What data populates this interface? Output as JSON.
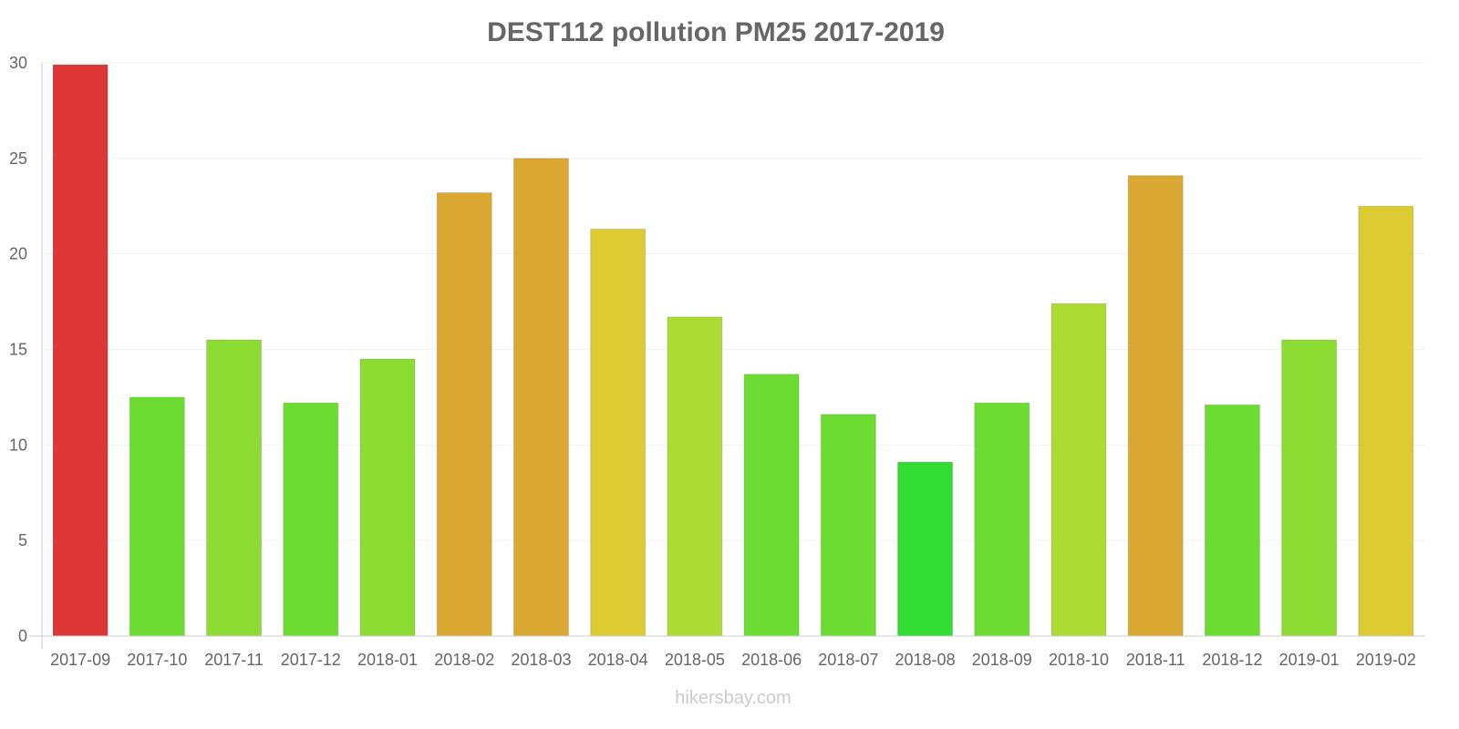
{
  "chart_data": {
    "type": "bar",
    "title": "DEST112 pollution PM25 2017-2019",
    "xlabel": "",
    "ylabel": "",
    "ylim": [
      0,
      30
    ],
    "yticks": [
      0,
      5,
      10,
      15,
      20,
      25,
      30
    ],
    "grid": true,
    "categories": [
      "2017-09",
      "2017-10",
      "2017-11",
      "2017-12",
      "2018-01",
      "2018-02",
      "2018-03",
      "2018-04",
      "2018-05",
      "2018-06",
      "2018-07",
      "2018-08",
      "2018-09",
      "2018-10",
      "2018-11",
      "2018-12",
      "2019-01",
      "2019-02"
    ],
    "values": [
      29.9,
      12.5,
      15.5,
      12.2,
      14.5,
      23.2,
      25.0,
      21.3,
      16.7,
      13.7,
      11.6,
      9.1,
      12.2,
      17.4,
      24.1,
      12.1,
      15.5,
      22.5
    ],
    "colors": [
      "#dd3636",
      "#6cdc33",
      "#8cdc33",
      "#6cdc33",
      "#8cdc33",
      "#dca834",
      "#dca834",
      "#dccb33",
      "#acdc33",
      "#6cdc33",
      "#6cdc33",
      "#33dc33",
      "#6cdc33",
      "#acdc33",
      "#dca834",
      "#6cdc33",
      "#8cdc33",
      "#dccb33"
    ]
  },
  "watermark": "hikersbay.com"
}
